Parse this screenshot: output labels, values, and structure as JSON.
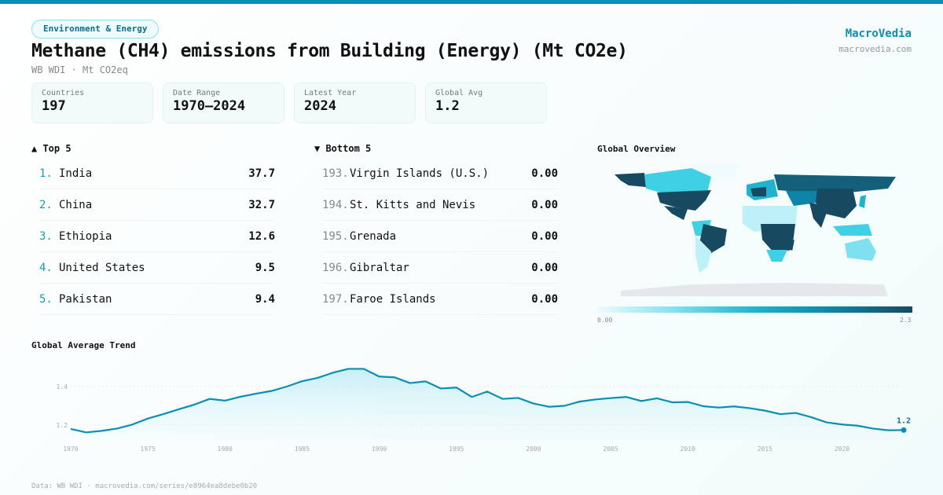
{
  "header": {
    "category": "Environment & Energy",
    "title": "Methane (CH4) emissions from Building (Energy) (Mt CO2e)",
    "subtitle": "WB WDI · Mt CO2eq",
    "brand": "MacroVedia",
    "brand_url": "macrovedia.com"
  },
  "stats": [
    {
      "label": "Countries",
      "value": "197"
    },
    {
      "label": "Date Range",
      "value": "1970–2024"
    },
    {
      "label": "Latest Year",
      "value": "2024"
    },
    {
      "label": "Global Avg",
      "value": "1.2"
    }
  ],
  "top": {
    "title": "▲ Top 5",
    "items": [
      {
        "rank": "1.",
        "name": "India",
        "value": "37.7"
      },
      {
        "rank": "2.",
        "name": "China",
        "value": "32.7"
      },
      {
        "rank": "3.",
        "name": "Ethiopia",
        "value": "12.6"
      },
      {
        "rank": "4.",
        "name": "United States",
        "value": "9.5"
      },
      {
        "rank": "5.",
        "name": "Pakistan",
        "value": "9.4"
      }
    ]
  },
  "bottom": {
    "title": "▼ Bottom 5",
    "items": [
      {
        "rank": "193.",
        "name": "Virgin Islands (U.S.)",
        "value": "0.00"
      },
      {
        "rank": "194.",
        "name": "St. Kitts and Nevis",
        "value": "0.00"
      },
      {
        "rank": "195.",
        "name": "Grenada",
        "value": "0.00"
      },
      {
        "rank": "196.",
        "name": "Gibraltar",
        "value": "0.00"
      },
      {
        "rank": "197.",
        "name": "Faroe Islands",
        "value": "0.00"
      }
    ]
  },
  "map": {
    "title": "Global Overview",
    "legend_min": "0.00",
    "legend_max": "2.3",
    "colors": [
      "#effbfd",
      "#7fe0ef",
      "#1fb3cf",
      "#0d84a6",
      "#174a60"
    ]
  },
  "footer": "Data: WB WDI · macrovedia.com/series/e8964ea8debe0b20",
  "chart_data": {
    "type": "area",
    "title": "Global Average Trend",
    "x": [
      1970,
      1971,
      1972,
      1973,
      1974,
      1975,
      1976,
      1977,
      1978,
      1979,
      1980,
      1981,
      1982,
      1983,
      1984,
      1985,
      1986,
      1987,
      1988,
      1989,
      1990,
      1991,
      1992,
      1993,
      1994,
      1995,
      1996,
      1997,
      1998,
      1999,
      2000,
      2001,
      2002,
      2003,
      2004,
      2005,
      2006,
      2007,
      2008,
      2009,
      2010,
      2011,
      2012,
      2013,
      2014,
      2015,
      2016,
      2017,
      2018,
      2019,
      2020,
      2021,
      2022,
      2023,
      2024
    ],
    "values": [
      1.18,
      1.162,
      1.17,
      1.182,
      1.203,
      1.234,
      1.257,
      1.282,
      1.306,
      1.336,
      1.327,
      1.347,
      1.363,
      1.377,
      1.4,
      1.428,
      1.445,
      1.472,
      1.492,
      1.492,
      1.452,
      1.448,
      1.418,
      1.427,
      1.39,
      1.395,
      1.346,
      1.374,
      1.336,
      1.341,
      1.312,
      1.295,
      1.3,
      1.322,
      1.333,
      1.34,
      1.346,
      1.325,
      1.339,
      1.318,
      1.32,
      1.298,
      1.291,
      1.297,
      1.288,
      1.275,
      1.257,
      1.263,
      1.241,
      1.214,
      1.203,
      1.197,
      1.182,
      1.173,
      1.174
    ],
    "x_ticks": [
      "1970",
      "1975",
      "1980",
      "1985",
      "1990",
      "1995",
      "2000",
      "2005",
      "2010",
      "2015",
      "2020"
    ],
    "y_ticks": [
      "1.2",
      "1.4"
    ],
    "last_label": "1.2",
    "color": "#0a8fb3",
    "grid": true
  }
}
